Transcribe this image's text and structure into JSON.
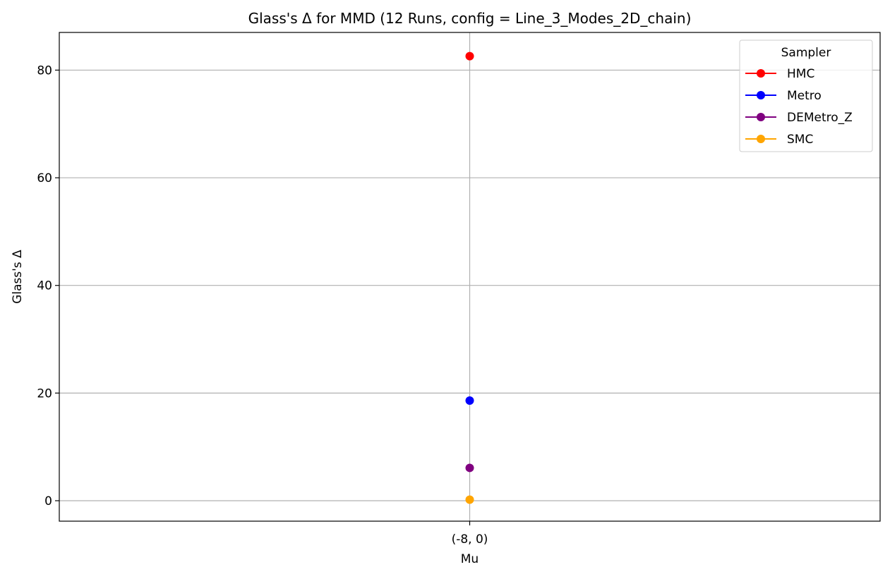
{
  "chart_data": {
    "type": "scatter",
    "title": "Glass's Δ for MMD (12 Runs, config = Line_3_Modes_2D_chain)",
    "xlabel": "Mu",
    "ylabel": "Glass's Δ",
    "categories": [
      "(-8, 0)"
    ],
    "ylim": [
      -3.8,
      87
    ],
    "yticks": [
      0,
      20,
      40,
      60,
      80
    ],
    "grid": true,
    "legend": {
      "title": "Sampler",
      "placement": "top-right"
    },
    "series": [
      {
        "name": "HMC",
        "color": "#ff0000",
        "values": [
          82.6
        ]
      },
      {
        "name": "Metro",
        "color": "#0000ff",
        "values": [
          18.6
        ]
      },
      {
        "name": "DEMetro_Z",
        "color": "#800080",
        "values": [
          6.1
        ]
      },
      {
        "name": "SMC",
        "color": "#ffa500",
        "values": [
          0.2
        ]
      }
    ]
  }
}
